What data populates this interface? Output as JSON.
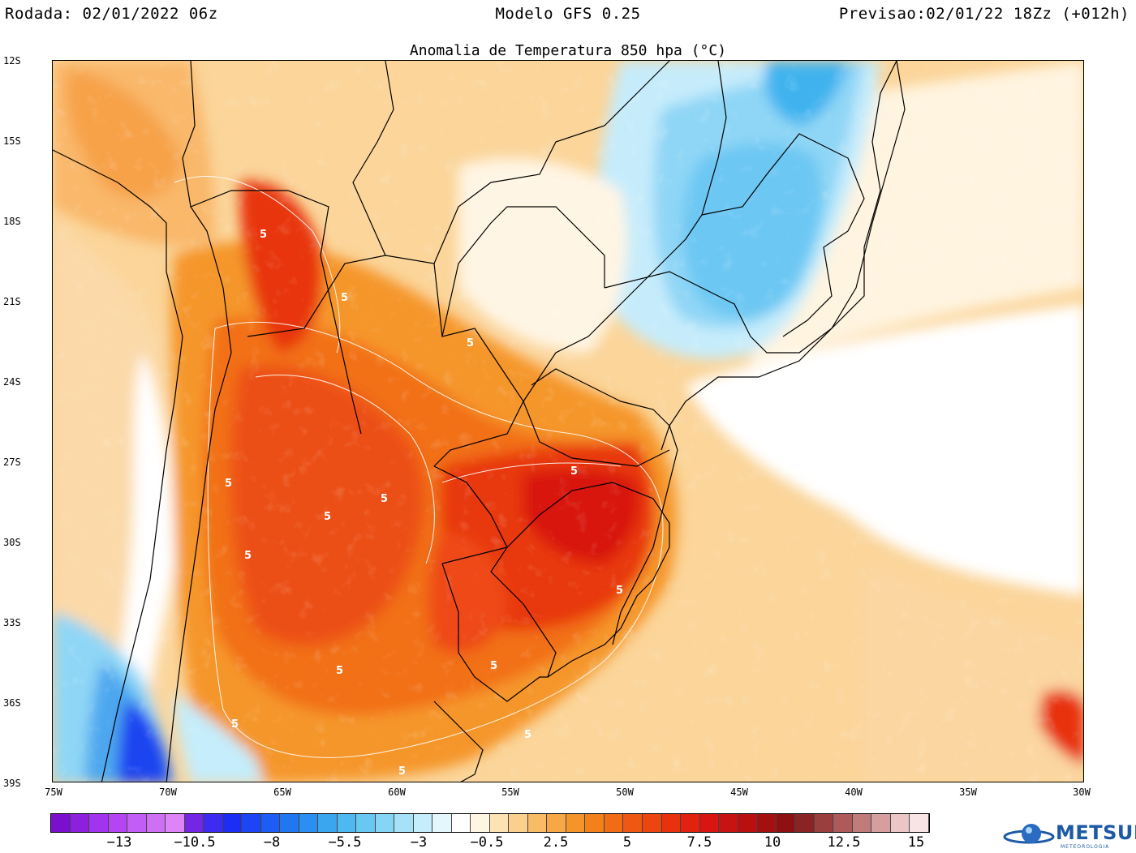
{
  "header": {
    "run": "Rodada: 02/01/2022 06z",
    "model": "Modelo GFS 0.25",
    "forecast": "Previsao:02/01/22 18Zz (+012h)"
  },
  "map": {
    "title": "Anomalia de Temperatura 850 hpa (°C)",
    "lat_labels": [
      "12S",
      "15S",
      "18S",
      "21S",
      "24S",
      "27S",
      "30S",
      "33S",
      "36S",
      "39S"
    ],
    "lon_labels": [
      "75W",
      "70W",
      "65W",
      "60W",
      "55W",
      "50W",
      "45W",
      "40W",
      "35W",
      "30W"
    ],
    "contour_label": "5",
    "extent": {
      "lon": [
        -75,
        -30
      ],
      "lat": [
        -39,
        -12
      ]
    }
  },
  "colorbar": {
    "labels": [
      "−13",
      "−10.5",
      "−8",
      "−5.5",
      "−3",
      "−0.5",
      "2.5",
      "5",
      "7.5",
      "10",
      "12.5",
      "15"
    ],
    "colors": [
      "#7a0fd0",
      "#8c1fe0",
      "#a233ee",
      "#b346f2",
      "#c25ef5",
      "#cf6ff6",
      "#dc84f8",
      "#7426e6",
      "#3d2bf0",
      "#1c2ef5",
      "#1b45f5",
      "#1d5df5",
      "#2176f2",
      "#2a8ff0",
      "#39a6ef",
      "#4db9f0",
      "#68c8f4",
      "#84d5f6",
      "#a5e2f9",
      "#c5edfb",
      "#e4f7fd",
      "#ffffff",
      "#fff6e1",
      "#fde3b3",
      "#fbd08c",
      "#f9bc66",
      "#f7a844",
      "#f59428",
      "#f3811a",
      "#f16c15",
      "#ef5812",
      "#ec4510",
      "#e8320e",
      "#e2210e",
      "#d8160f",
      "#c91212",
      "#b9100f",
      "#a40f0f",
      "#8e1010",
      "#8a2424",
      "#9a3e3e",
      "#ad5a5a",
      "#c27b7b",
      "#d69f9f",
      "#ebc6c6",
      "#f8e4e4"
    ]
  },
  "logo": {
    "name": "METSUL",
    "sub": "METEOROLOGIA"
  }
}
